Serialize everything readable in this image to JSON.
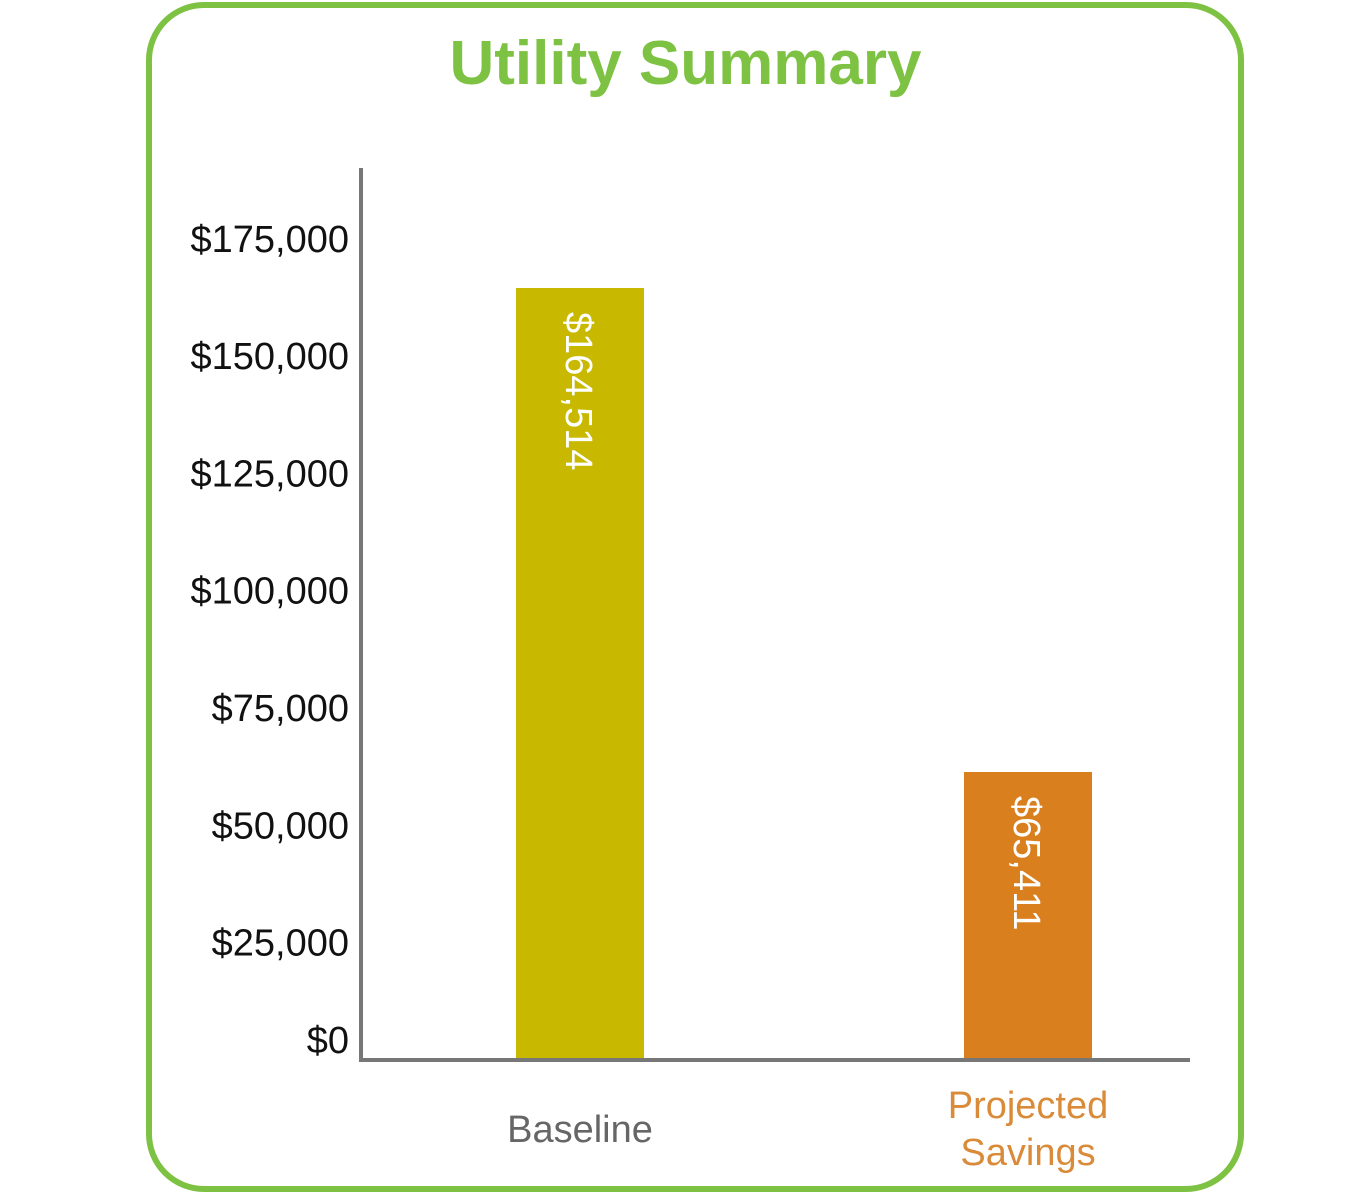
{
  "chart_data": {
    "type": "bar",
    "title": "Utility Summary",
    "categories": [
      "Baseline",
      "Projected Savings"
    ],
    "category_label_lines": [
      [
        "Baseline"
      ],
      [
        "Projected",
        "Savings"
      ]
    ],
    "values": [
      164514,
      65411
    ],
    "data_labels": [
      "$164,514",
      "$65,411"
    ],
    "bar_colors": [
      "#c8b800",
      "#d97f1e"
    ],
    "category_label_colors": [
      "#666666",
      "#d98b3a"
    ],
    "ylim": [
      0,
      190000
    ],
    "yticks": [
      0,
      25000,
      50000,
      75000,
      100000,
      125000,
      150000,
      175000
    ],
    "ytick_labels": [
      "$0",
      "$25,000",
      "$50,000",
      "$75,000",
      "$100,000",
      "$125,000",
      "$150,000",
      "$175,000"
    ],
    "xlabel": "",
    "ylabel": "",
    "grid": false,
    "legend": "none"
  },
  "colors": {
    "frame": "#7dc242",
    "title": "#7dc242",
    "axis": "#777777"
  }
}
